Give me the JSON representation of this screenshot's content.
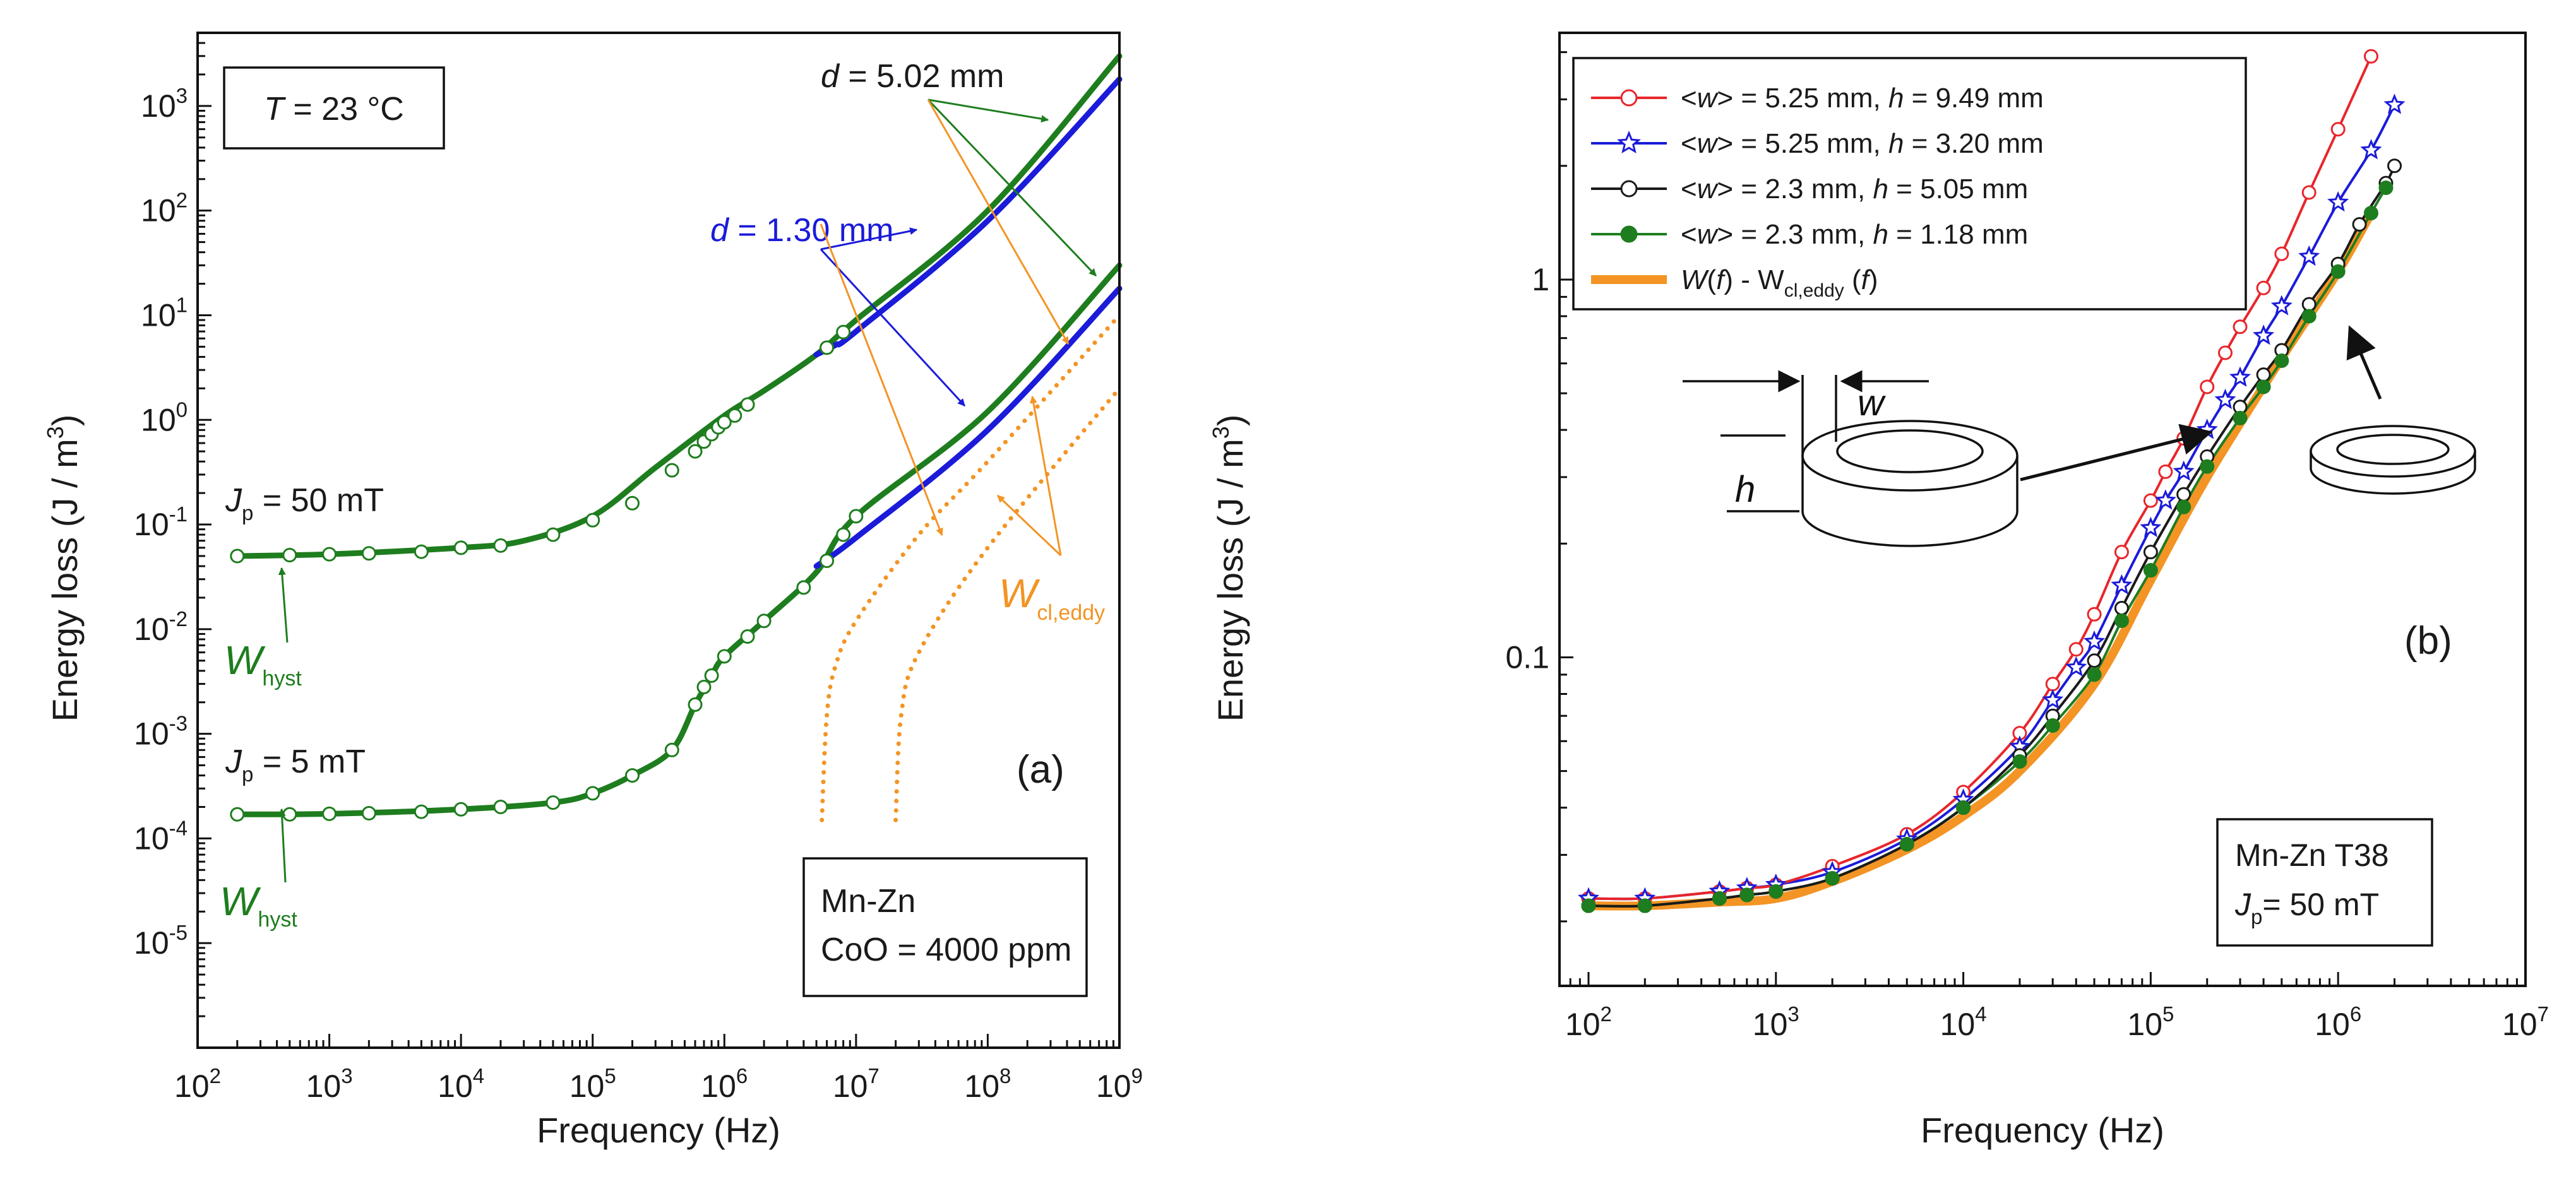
{
  "colors": {
    "green": "#1e7d1e",
    "blue": "#1b1bd9",
    "orange": "#f39424",
    "red": "#e8262b",
    "black": "#1a1a1a"
  },
  "chart_data": [
    {
      "type": "line",
      "panel_label": "(a)",
      "xlabel": "Frequency (Hz)",
      "ylabel": "Energy loss (J / m",
      "ylabel_exp": "3",
      "ylabel_close": ")",
      "xscale": "log",
      "yscale": "log",
      "xlim": [
        100,
        1000000000
      ],
      "ylim": [
        1e-06,
        5000
      ],
      "x_ticks": [
        {
          "value": 100,
          "base": "10",
          "exp": "2"
        },
        {
          "value": 1000,
          "base": "10",
          "exp": "3"
        },
        {
          "value": 10000,
          "base": "10",
          "exp": "4"
        },
        {
          "value": 100000,
          "base": "10",
          "exp": "5"
        },
        {
          "value": 1000000,
          "base": "10",
          "exp": "6"
        },
        {
          "value": 10000000,
          "base": "10",
          "exp": "7"
        },
        {
          "value": 100000000,
          "base": "10",
          "exp": "8"
        },
        {
          "value": 1000000000,
          "base": "10",
          "exp": "9"
        }
      ],
      "y_ticks": [
        {
          "value": 1e-05,
          "base": "10",
          "exp": "-5"
        },
        {
          "value": 0.0001,
          "base": "10",
          "exp": "-4"
        },
        {
          "value": 0.001,
          "base": "10",
          "exp": "-3"
        },
        {
          "value": 0.01,
          "base": "10",
          "exp": "-2"
        },
        {
          "value": 0.1,
          "base": "10",
          "exp": "-1"
        },
        {
          "value": 1,
          "base": "10",
          "exp": "0"
        },
        {
          "value": 10,
          "base": "10",
          "exp": "1"
        },
        {
          "value": 100,
          "base": "10",
          "exp": "2"
        },
        {
          "value": 1000,
          "base": "10",
          "exp": "3"
        }
      ],
      "temperature_box": {
        "italic": "T",
        "rest": " = 23 °C"
      },
      "material_box": {
        "line1": "Mn-Zn",
        "line2": "CoO = 4000 ppm"
      },
      "annotations": {
        "d_thick": {
          "italic": "d",
          "rest": " = 5.02 mm"
        },
        "d_thin": {
          "italic": "d",
          "rest": " = 1.30 mm"
        },
        "jp_high": {
          "base": "J",
          "sub": "p",
          "rest": " = 50 mT"
        },
        "jp_low": {
          "base": "J",
          "sub": "p",
          "rest": " = 5 mT"
        },
        "whyst_high": {
          "base": "W",
          "sub": "hyst"
        },
        "whyst_low": {
          "base": "W",
          "sub": "hyst"
        },
        "wcl_eddy": {
          "base": "W",
          "sub": "cl,eddy"
        }
      },
      "series": [
        {
          "name": "Jp = 50 mT, d = 5.02 mm",
          "color": "green",
          "style": "solid",
          "x": [
            200,
            1000,
            10000,
            30000,
            100000,
            300000,
            1000000,
            2000000,
            5000000,
            10000000,
            100000000,
            1000000000
          ],
          "y": [
            0.05,
            0.052,
            0.06,
            0.07,
            0.12,
            0.35,
            1.1,
            1.9,
            4.2,
            9.0,
            100,
            3000
          ]
        },
        {
          "name": "Jp = 50 mT, d = 1.30 mm",
          "color": "blue",
          "style": "solid",
          "x": [
            5000000,
            7000000,
            10000000,
            100000000,
            1000000000
          ],
          "y": [
            4.2,
            5.2,
            7.0,
            80,
            1800
          ]
        },
        {
          "name": "Jp = 5 mT, d = 5.02 mm",
          "color": "green",
          "style": "solid",
          "x": [
            200,
            1000,
            10000,
            50000,
            100000,
            200000,
            400000,
            600000,
            800000,
            1000000,
            2000000,
            5000000,
            10000000,
            100000000,
            1000000000
          ],
          "y": [
            0.00017,
            0.000172,
            0.00019,
            0.00022,
            0.00027,
            0.0004,
            0.0007,
            0.0019,
            0.0036,
            0.0055,
            0.012,
            0.035,
            0.12,
            1.2,
            30
          ]
        },
        {
          "name": "Jp = 5 mT, d = 1.30 mm",
          "color": "blue",
          "style": "solid",
          "x": [
            5000000,
            10000000,
            100000000,
            1000000000
          ],
          "y": [
            0.04,
            0.075,
            0.8,
            18
          ]
        },
        {
          "name": "Wcl,eddy d = 5.02 mm, Jp = 50 mT",
          "color": "orange",
          "style": "dotted",
          "x": [
            5500000,
            6000000,
            7000000,
            10000000,
            30000000,
            100000000,
            1000000000
          ],
          "y": [
            0.00015,
            0.0015,
            0.0045,
            0.012,
            0.08,
            0.4,
            10
          ]
        },
        {
          "name": "Wcl,eddy d = 1.30 mm, Jp = 50 mT",
          "color": "orange",
          "style": "dotted",
          "x": [
            20000000,
            22000000,
            30000000,
            100000000,
            1000000000
          ],
          "y": [
            0.00015,
            0.0015,
            0.006,
            0.06,
            2
          ]
        }
      ],
      "markers_high": {
        "x": [
          200,
          500,
          1000,
          2000,
          5000,
          10000,
          20000,
          50000,
          100000,
          200000,
          400000,
          600000,
          700000,
          800000,
          900000,
          1000000,
          1200000,
          1500000,
          6000000,
          8000000
        ],
        "y": [
          0.05,
          0.051,
          0.052,
          0.053,
          0.055,
          0.06,
          0.063,
          0.08,
          0.11,
          0.16,
          0.33,
          0.5,
          0.62,
          0.73,
          0.85,
          0.95,
          1.1,
          1.4,
          4.9,
          6.9
        ]
      },
      "markers_low": {
        "x": [
          200,
          500,
          1000,
          2000,
          5000,
          10000,
          20000,
          50000,
          100000,
          200000,
          400000,
          600000,
          700000,
          800000,
          1000000,
          1500000,
          2000000,
          4000000,
          6000000,
          8000000,
          10000000
        ],
        "y": [
          0.00017,
          0.00017,
          0.000172,
          0.000174,
          0.00018,
          0.00019,
          0.0002,
          0.00022,
          0.00027,
          0.0004,
          0.0007,
          0.0019,
          0.0028,
          0.0036,
          0.0055,
          0.0085,
          0.012,
          0.025,
          0.045,
          0.08,
          0.12
        ]
      }
    },
    {
      "type": "line",
      "panel_label": "(b)",
      "xlabel": "Frequency (Hz)",
      "ylabel": "Energy loss (J / m",
      "ylabel_exp": "3",
      "ylabel_close": ")",
      "xscale": "log",
      "yscale": "log",
      "xlim": [
        70,
        10000000
      ],
      "ylim": [
        0.0135,
        4.5
      ],
      "x_ticks": [
        {
          "value": 100,
          "base": "10",
          "exp": "2"
        },
        {
          "value": 1000,
          "base": "10",
          "exp": "3"
        },
        {
          "value": 10000,
          "base": "10",
          "exp": "4"
        },
        {
          "value": 100000,
          "base": "10",
          "exp": "5"
        },
        {
          "value": 1000000,
          "base": "10",
          "exp": "6"
        },
        {
          "value": 10000000,
          "base": "10",
          "exp": "7"
        }
      ],
      "y_ticks": [
        {
          "value": 0.1,
          "label": "0.1"
        },
        {
          "value": 1,
          "label": "1"
        }
      ],
      "material_box": {
        "line1": "Mn-Zn T38",
        "jp": {
          "base": "J",
          "sub": "p",
          "rest": "= 50 mT"
        }
      },
      "sketch_labels": {
        "w": "w",
        "h": "h"
      },
      "legend": [
        {
          "p1": "<",
          "w": "w",
          "p2": "> = 5.25 mm, ",
          "h": "h",
          "p3": " = 9.49 mm",
          "color": "red",
          "marker": "circle"
        },
        {
          "p1": "<",
          "w": "w",
          "p2": "> = 5.25  mm, ",
          "h": "h",
          "p3": " = 3.20 mm",
          "color": "blue",
          "marker": "star"
        },
        {
          "p1": "<",
          "w": "w",
          "p2": "> = 2.3  mm, ",
          "h": "h",
          "p3": " = 5.05 mm",
          "color": "black",
          "marker": "circle"
        },
        {
          "p1": "<",
          "w": "w",
          "p2": "> = 2.3  mm, ",
          "h": "h",
          "p3": " = 1.18 mm",
          "color": "green",
          "marker": "filled-circle"
        },
        {
          "W": "W",
          "f1": "f",
          "mid": " - W",
          "sub": "cl,eddy",
          "f2": "f",
          "color": "orange",
          "marker": "none"
        }
      ],
      "series": [
        {
          "name": "<w> = 5.25 mm, h = 9.49 mm",
          "color": "red",
          "marker": "circle",
          "x": [
            100,
            200,
            500,
            700,
            1000,
            2000,
            5000,
            10000,
            20000,
            30000,
            40000,
            50000,
            70000,
            100000,
            120000,
            150000,
            200000,
            250000,
            300000,
            400000,
            500000,
            700000,
            1000000,
            1500000
          ],
          "y": [
            0.023,
            0.023,
            0.024,
            0.0245,
            0.025,
            0.028,
            0.034,
            0.044,
            0.063,
            0.085,
            0.105,
            0.13,
            0.19,
            0.26,
            0.31,
            0.38,
            0.52,
            0.64,
            0.75,
            0.95,
            1.17,
            1.7,
            2.5,
            3.9
          ]
        },
        {
          "name": "<w> = 5.25  mm, h = 3.20 mm",
          "color": "blue",
          "marker": "star",
          "x": [
            100,
            200,
            500,
            700,
            1000,
            2000,
            5000,
            10000,
            20000,
            30000,
            40000,
            50000,
            70000,
            100000,
            120000,
            150000,
            200000,
            250000,
            300000,
            400000,
            500000,
            700000,
            1000000,
            1500000,
            2000000
          ],
          "y": [
            0.023,
            0.023,
            0.024,
            0.0245,
            0.025,
            0.027,
            0.033,
            0.042,
            0.058,
            0.077,
            0.094,
            0.11,
            0.155,
            0.22,
            0.26,
            0.31,
            0.4,
            0.48,
            0.55,
            0.71,
            0.85,
            1.15,
            1.6,
            2.2,
            2.9
          ]
        },
        {
          "name": "<w> = 2.3  mm, h = 5.05 mm",
          "color": "black",
          "marker": "circle",
          "x": [
            100,
            200,
            500,
            700,
            1000,
            2000,
            5000,
            10000,
            20000,
            30000,
            50000,
            70000,
            100000,
            150000,
            200000,
            300000,
            400000,
            500000,
            700000,
            1000000,
            1300000,
            1800000,
            2000000
          ],
          "y": [
            0.022,
            0.022,
            0.023,
            0.0235,
            0.024,
            0.026,
            0.032,
            0.04,
            0.055,
            0.07,
            0.098,
            0.135,
            0.19,
            0.27,
            0.34,
            0.46,
            0.56,
            0.65,
            0.86,
            1.1,
            1.4,
            1.8,
            2.0
          ]
        },
        {
          "name": "<w> = 2.3  mm, h = 1.18 mm",
          "color": "green",
          "marker": "filled-circle",
          "x": [
            100,
            200,
            500,
            700,
            1000,
            2000,
            5000,
            10000,
            20000,
            30000,
            50000,
            70000,
            100000,
            150000,
            200000,
            300000,
            400000,
            500000,
            700000,
            1000000,
            1500000,
            1800000
          ],
          "y": [
            0.022,
            0.022,
            0.023,
            0.0235,
            0.024,
            0.026,
            0.032,
            0.04,
            0.053,
            0.066,
            0.09,
            0.125,
            0.17,
            0.25,
            0.32,
            0.43,
            0.52,
            0.61,
            0.8,
            1.05,
            1.5,
            1.75
          ]
        },
        {
          "name": "W(f) - Wcl,eddy (f)",
          "color": "orange",
          "marker": "none",
          "width": "thick",
          "x": [
            100,
            200,
            500,
            1000,
            2000,
            5000,
            10000,
            20000,
            50000,
            100000,
            200000,
            500000,
            1000000,
            1500000
          ],
          "y": [
            0.022,
            0.022,
            0.0225,
            0.023,
            0.0255,
            0.031,
            0.038,
            0.05,
            0.085,
            0.16,
            0.3,
            0.62,
            1.05,
            1.5
          ]
        }
      ]
    }
  ]
}
